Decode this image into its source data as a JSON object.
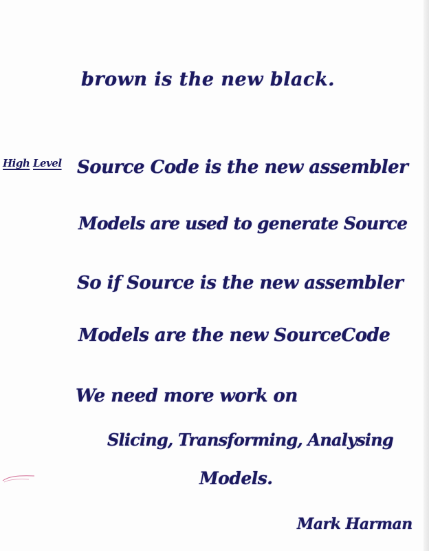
{
  "note": {
    "lines": [
      "brown is the new black.",
      "Source Code is the new assembler",
      "Models are used to generate Source",
      "So if Source is the new assembler",
      "Models are the new SourceCode",
      "We need more work on",
      "Slicing, Transforming, Analysing",
      "Models."
    ],
    "margin_prefix": {
      "word1": "High",
      "word2": "Level"
    },
    "signature": "Mark Harman"
  },
  "colors": {
    "ink": "#1c1a5e",
    "paper": "#fdfdfd",
    "stray_mark": "#c0306a"
  }
}
